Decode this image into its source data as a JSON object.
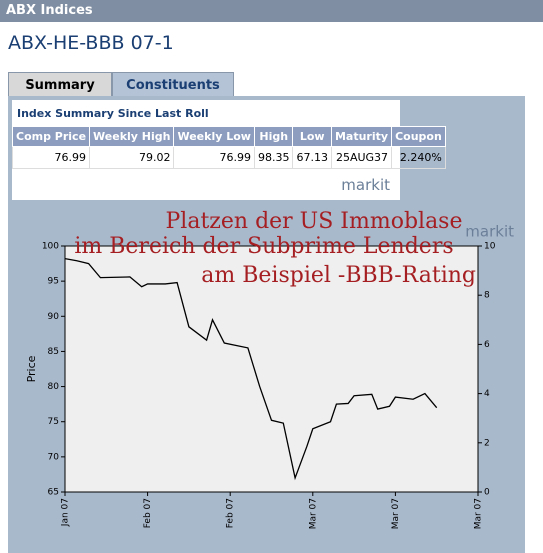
{
  "header": {
    "title": "ABX Indices",
    "index_name": "ABX-HE-BBB 07-1"
  },
  "tabs": [
    "Summary",
    "Constituents"
  ],
  "table": {
    "title": "Index Summary Since Last Roll",
    "columns": [
      "Comp Price",
      "Weekly High",
      "Weekly Low",
      "High",
      "Low",
      "Maturity",
      "Coupon"
    ],
    "rows": [
      [
        "76.99",
        "79.02",
        "76.99",
        "98.35",
        "67.13",
        "25AUG37",
        "2.240%"
      ]
    ],
    "logo": "markit"
  },
  "chart_data": {
    "type": "line",
    "annotations": [
      "Platzen der US Immoblase",
      "im Bereich der Subprime Lenders",
      "am Beispiel -BBB-Rating"
    ],
    "logo": "markit",
    "ylabel": "Price",
    "x": [
      0,
      2,
      4,
      6,
      11,
      13,
      14,
      17,
      19,
      21,
      24,
      25,
      27,
      31,
      33,
      35,
      37,
      39,
      41,
      42,
      45,
      46,
      48,
      49,
      52,
      53,
      55,
      56,
      59,
      61,
      63
    ],
    "xlim": [
      0,
      70
    ],
    "xticks": [
      {
        "value": 0,
        "label": "Jan 07"
      },
      {
        "value": 14,
        "label": "Feb 07"
      },
      {
        "value": 28,
        "label": "Feb 07"
      },
      {
        "value": 42,
        "label": "Mar 07"
      },
      {
        "value": 56,
        "label": "Mar 07"
      },
      {
        "value": 70,
        "label": "Mar 07"
      }
    ],
    "ylim": [
      65,
      100
    ],
    "yticks": [
      65,
      70,
      75,
      80,
      85,
      90,
      95,
      100
    ],
    "y2lim": [
      0,
      10
    ],
    "y2ticks": [
      0,
      2,
      4,
      6,
      8,
      10
    ],
    "series": [
      {
        "color": "#000000",
        "values": [
          98.2,
          97.9,
          97.5,
          95.5,
          95.6,
          94.2,
          94.6,
          94.6,
          94.8,
          88.5,
          86.6,
          89.5,
          86.2,
          85.5,
          80,
          75.2,
          74.8,
          67,
          71.5,
          74,
          75,
          77.5,
          77.6,
          78.7,
          78.9,
          76.8,
          77.2,
          78.5,
          78.2,
          79,
          77
        ]
      }
    ]
  }
}
